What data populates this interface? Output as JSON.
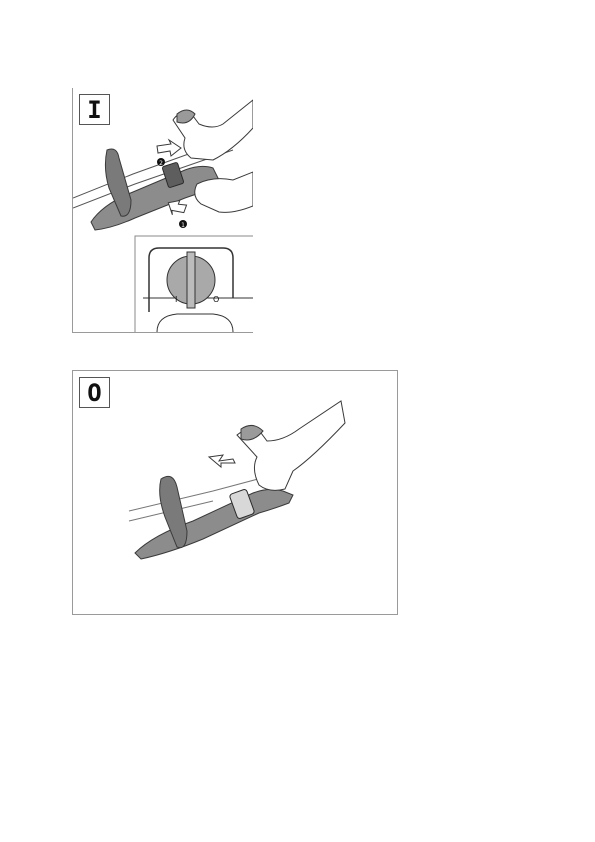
{
  "panels": {
    "on": {
      "symbol": "I",
      "step1": "1",
      "step2": "2",
      "switch_left": "I",
      "switch_right": "O"
    },
    "off": {
      "symbol": "O"
    }
  },
  "colors": {
    "stroke": "#3a3a3a",
    "grip": "#8c8c8c",
    "grip_dark": "#6e6e6e",
    "switch": "#a9a9a9"
  },
  "icons": [
    "push-arrow-icon",
    "step-1-marker",
    "step-2-marker",
    "rotary-switch-icon"
  ]
}
